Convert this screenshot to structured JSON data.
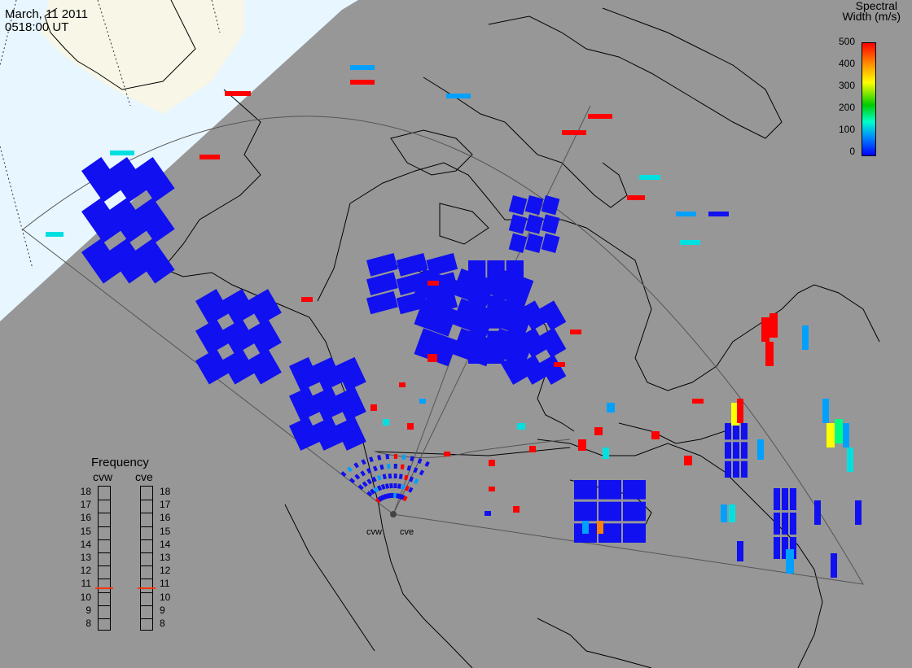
{
  "header": {
    "date": "March, 11 2011",
    "time": "0518:00 UT"
  },
  "legend": {
    "title_line1": "Spectral",
    "title_line2": "Width (m/s)",
    "ticks": [
      "500",
      "400",
      "300",
      "200",
      "100",
      "0"
    ],
    "colors": [
      "#ff0000",
      "#ff9900",
      "#ffff00",
      "#00cc00",
      "#00ffcc",
      "#0080ff",
      "#0000ff"
    ]
  },
  "frequency": {
    "title": "Frequency",
    "radars": [
      "cvw",
      "cve"
    ],
    "levels": [
      "18",
      "17",
      "16",
      "15",
      "14",
      "13",
      "12",
      "11",
      "10",
      "9",
      "8"
    ],
    "current": {
      "cvw": 10.8,
      "cve": 10.8
    },
    "marker_color": "#ff3300"
  },
  "stations": {
    "west": "cvw",
    "east": "cve"
  },
  "colors": {
    "background": "#979797",
    "land_outline": "#000000",
    "daylight_ocean": "#e8f6ff",
    "daylight_land": "#f7f6e7",
    "fov_outline": "#555555",
    "echo_low": "#1010f0",
    "echo_mid": "#00a0ff",
    "echo_cyan": "#00e0e0",
    "echo_high": "#ff0000"
  }
}
